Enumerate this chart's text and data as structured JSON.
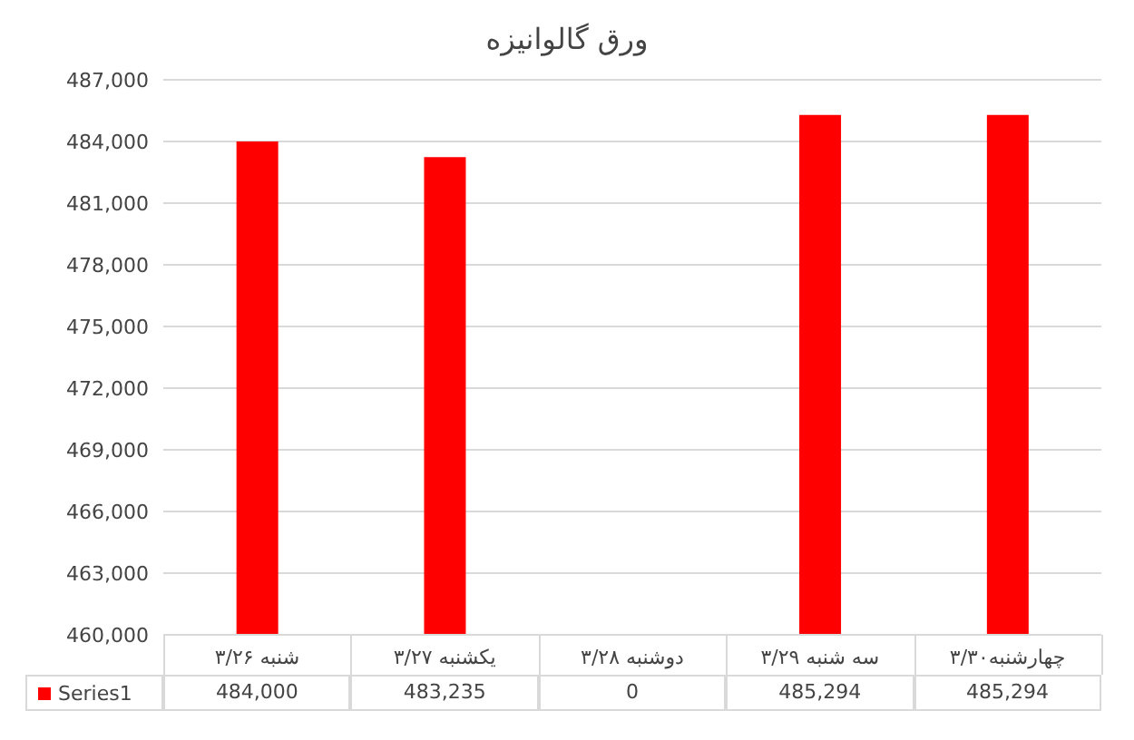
{
  "chart_data": {
    "type": "bar",
    "title": "ورق گالوانیزه",
    "categories": [
      "شنبه ۳/۲۶",
      "یکشنبه ۳/۲۷",
      "دوشنبه ۳/۲۸",
      "سه شنبه ۳/۲۹",
      "چهارشنبه۳/۳۰"
    ],
    "series": [
      {
        "name": "Series1",
        "color": "#ff0000",
        "values": [
          484000,
          483235,
          null,
          485294,
          485294
        ],
        "value_labels": [
          "484,000",
          "483,235",
          "0",
          "485,294",
          "485,294"
        ]
      }
    ],
    "ylim": [
      460000,
      487000
    ],
    "yticks": [
      {
        "value": 460000,
        "label": "460,000"
      },
      {
        "value": 463000,
        "label": "463,000"
      },
      {
        "value": 466000,
        "label": "466,000"
      },
      {
        "value": 469000,
        "label": "469,000"
      },
      {
        "value": 472000,
        "label": "472,000"
      },
      {
        "value": 475000,
        "label": "475,000"
      },
      {
        "value": 478000,
        "label": "478,000"
      },
      {
        "value": 481000,
        "label": "481,000"
      },
      {
        "value": 484000,
        "label": "484,000"
      },
      {
        "value": 487000,
        "label": "487,000"
      }
    ],
    "grid": "y",
    "legend": "bottom"
  }
}
